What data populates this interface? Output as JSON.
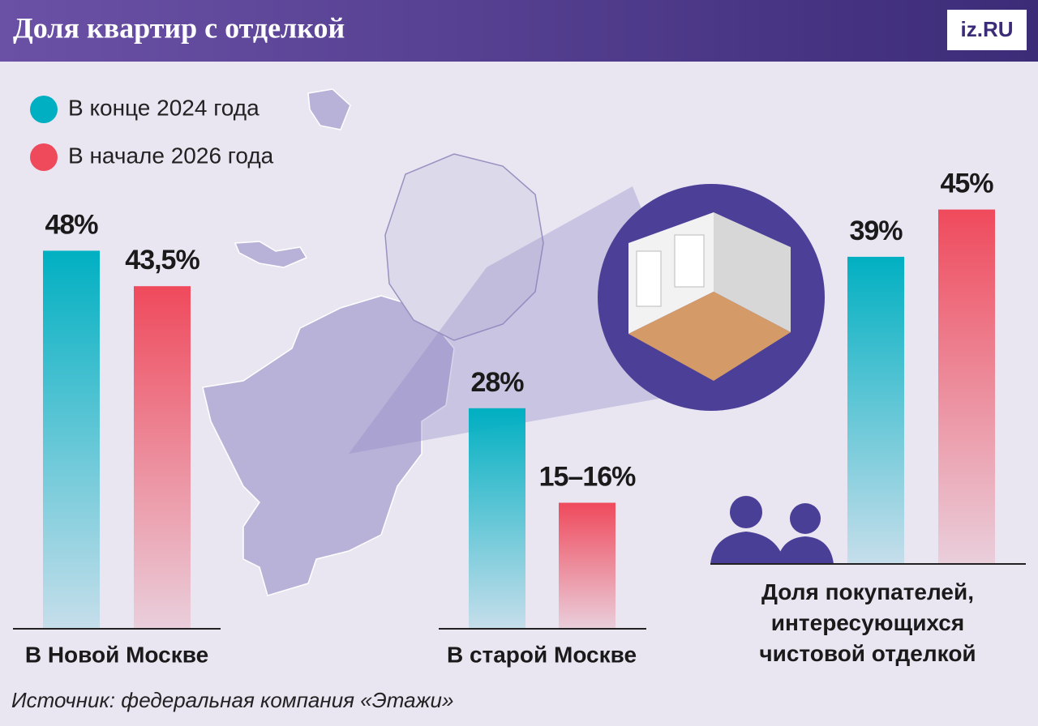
{
  "logo": "iz.RU",
  "chart_data": {
    "type": "bar",
    "title": "Доля квартир с отделкой",
    "source": "Источник: федеральная компания «Этажи»",
    "categories": [
      "В Новой Москве",
      "В старой Москве",
      "Доля покупателей, интересующихся чистовой отделкой"
    ],
    "series": [
      {
        "name": "В конце 2024 года",
        "color": "#00b0c2",
        "values": [
          48,
          28,
          39
        ],
        "value_labels": [
          "48%",
          "28%",
          "39%"
        ]
      },
      {
        "name": "В начале 2026 года",
        "color": "#ef4a5c",
        "values": [
          43.5,
          16,
          45
        ],
        "value_labels": [
          "43,5%",
          "15–16%",
          "45%"
        ]
      }
    ],
    "legend": "top-left"
  }
}
